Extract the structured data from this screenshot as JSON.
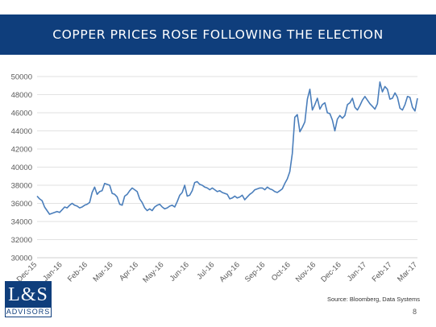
{
  "slide": {
    "title": "COPPER PRICES ROSE FOLLOWING THE ELECTION",
    "source": "Source:  Bloomberg, Data Systems",
    "page_number": "8",
    "logo": {
      "top": "L&S",
      "bottom": "ADVISORS"
    }
  },
  "colors": {
    "title_bar": "#0f3e7c",
    "line": "#4a7ebb",
    "grid": "#d9d9d9"
  },
  "chart_data": {
    "type": "line",
    "title": "",
    "xlabel": "",
    "ylabel": "",
    "ylim": [
      30000,
      50000
    ],
    "yticks": [
      30000,
      32000,
      34000,
      36000,
      38000,
      40000,
      42000,
      44000,
      46000,
      48000,
      50000
    ],
    "xticks": [
      "Dec-15",
      "Jan-16",
      "Feb-16",
      "Mar-16",
      "Apr-16",
      "May-16",
      "Jun-16",
      "Jul-16",
      "Aug-16",
      "Sep-16",
      "Oct-16",
      "Nov-16",
      "Dec-16",
      "Jan-17",
      "Feb-17",
      "Mar-17"
    ],
    "grid": true,
    "legend": "none",
    "series": [
      {
        "name": "",
        "values": [
          36800,
          36500,
          36300,
          35600,
          35200,
          34800,
          34900,
          35000,
          35100,
          35000,
          35300,
          35600,
          35500,
          35800,
          36000,
          35800,
          35700,
          35500,
          35600,
          35800,
          35900,
          36100,
          37200,
          37800,
          37000,
          37300,
          37400,
          38200,
          38100,
          38000,
          37100,
          37000,
          36700,
          35900,
          35800,
          36800,
          37000,
          37400,
          37700,
          37500,
          37300,
          36500,
          36100,
          35500,
          35200,
          35400,
          35200,
          35600,
          35800,
          35900,
          35600,
          35400,
          35500,
          35700,
          35800,
          35600,
          36200,
          36900,
          37200,
          38000,
          36800,
          36900,
          37400,
          38300,
          38400,
          38100,
          38000,
          37800,
          37700,
          37500,
          37700,
          37500,
          37300,
          37400,
          37200,
          37100,
          37000,
          36500,
          36600,
          36800,
          36600,
          36700,
          36900,
          36400,
          36700,
          37000,
          37200,
          37500,
          37600,
          37700,
          37700,
          37500,
          37800,
          37600,
          37500,
          37300,
          37200,
          37400,
          37600,
          38200,
          38700,
          39500,
          41500,
          45500,
          45800,
          43900,
          44400,
          45000,
          47500,
          48600,
          46300,
          46900,
          47600,
          46400,
          46900,
          47100,
          46000,
          45900,
          45200,
          44000,
          45300,
          45700,
          45400,
          45700,
          46900,
          47100,
          47600,
          46600,
          46300,
          46800,
          47400,
          47800,
          47400,
          47000,
          46700,
          46400,
          47000,
          49400,
          48300,
          48900,
          48600,
          47500,
          47600,
          48200,
          47700,
          46500,
          46300,
          46900,
          47800,
          47700,
          46600,
          46200,
          47600
        ]
      }
    ]
  }
}
